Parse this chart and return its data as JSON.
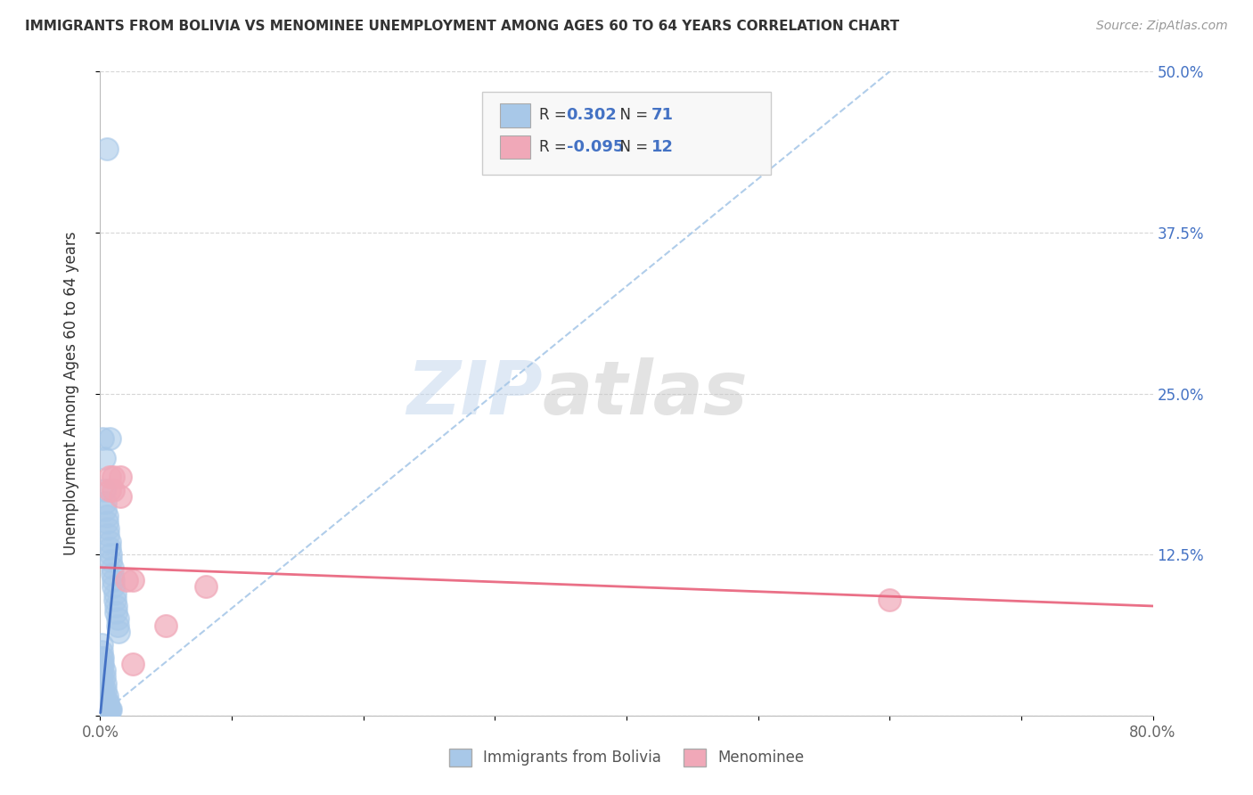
{
  "title": "IMMIGRANTS FROM BOLIVIA VS MENOMINEE UNEMPLOYMENT AMONG AGES 60 TO 64 YEARS CORRELATION CHART",
  "source": "Source: ZipAtlas.com",
  "ylabel": "Unemployment Among Ages 60 to 64 years",
  "xlim": [
    0.0,
    0.8
  ],
  "ylim": [
    0.0,
    0.5
  ],
  "xticks": [
    0.0,
    0.1,
    0.2,
    0.3,
    0.4,
    0.5,
    0.6,
    0.7,
    0.8
  ],
  "xticklabels": [
    "0.0%",
    "",
    "",
    "",
    "",
    "",
    "",
    "",
    "80.0%"
  ],
  "yticks": [
    0.0,
    0.125,
    0.25,
    0.375,
    0.5
  ],
  "yticklabels": [
    "",
    "12.5%",
    "25.0%",
    "37.5%",
    "50.0%"
  ],
  "watermark_left": "ZIP",
  "watermark_right": "atlas",
  "legend_r_blue": "0.302",
  "legend_n_blue": "71",
  "legend_r_pink": "-0.095",
  "legend_n_pink": "12",
  "blue_color": "#A8C8E8",
  "pink_color": "#F0A8B8",
  "blue_line_color": "#4472C4",
  "pink_line_color": "#E8607A",
  "dashed_line_color": "#A8C8E8",
  "grid_color": "#CCCCCC",
  "blue_scatter_x": [
    0.005,
    0.007,
    0.002,
    0.003,
    0.003,
    0.004,
    0.004,
    0.005,
    0.005,
    0.006,
    0.006,
    0.007,
    0.007,
    0.008,
    0.008,
    0.009,
    0.009,
    0.01,
    0.01,
    0.011,
    0.011,
    0.012,
    0.012,
    0.013,
    0.013,
    0.014,
    0.001,
    0.001,
    0.002,
    0.002,
    0.003,
    0.003,
    0.004,
    0.004,
    0.005,
    0.005,
    0.006,
    0.006,
    0.007,
    0.007,
    0.008,
    0.001,
    0.001,
    0.002,
    0.002,
    0.003,
    0.003,
    0.004,
    0.004,
    0.005,
    0.005,
    0.001,
    0.001,
    0.001,
    0.001,
    0.002,
    0.002,
    0.003,
    0.001,
    0.001,
    0.001,
    0.002,
    0.002,
    0.001,
    0.001,
    0.001,
    0.001,
    0.001,
    0.001,
    0.001,
    0.001
  ],
  "blue_scatter_y": [
    0.44,
    0.215,
    0.215,
    0.2,
    0.175,
    0.165,
    0.16,
    0.155,
    0.15,
    0.145,
    0.14,
    0.135,
    0.13,
    0.125,
    0.12,
    0.115,
    0.11,
    0.105,
    0.1,
    0.095,
    0.09,
    0.085,
    0.08,
    0.075,
    0.07,
    0.065,
    0.055,
    0.05,
    0.045,
    0.04,
    0.035,
    0.03,
    0.025,
    0.02,
    0.015,
    0.01,
    0.01,
    0.005,
    0.005,
    0.005,
    0.005,
    0.005,
    0.004,
    0.004,
    0.003,
    0.003,
    0.002,
    0.002,
    0.001,
    0.001,
    0.001,
    0.045,
    0.04,
    0.035,
    0.03,
    0.025,
    0.02,
    0.015,
    0.015,
    0.01,
    0.008,
    0.008,
    0.006,
    0.006,
    0.004,
    0.003,
    0.003,
    0.002,
    0.002,
    0.001,
    0.001
  ],
  "pink_scatter_x": [
    0.007,
    0.007,
    0.01,
    0.01,
    0.015,
    0.015,
    0.02,
    0.025,
    0.05,
    0.08,
    0.6,
    0.025
  ],
  "pink_scatter_y": [
    0.185,
    0.175,
    0.185,
    0.175,
    0.185,
    0.17,
    0.105,
    0.105,
    0.07,
    0.1,
    0.09,
    0.04
  ],
  "blue_trend_x": [
    0.0,
    0.6
  ],
  "blue_trend_y": [
    0.0,
    0.5
  ],
  "pink_trend_x": [
    0.0,
    0.8
  ],
  "pink_trend_y": [
    0.115,
    0.085
  ],
  "bg_color": "#FFFFFF"
}
